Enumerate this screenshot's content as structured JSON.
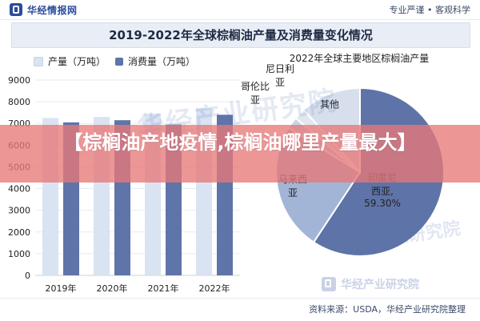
{
  "topbar": {
    "brand": "华经情报网",
    "slogan": "专业严谨 • 客观科学"
  },
  "title": "2019-2022年全球棕榈油产量及消费量变化情况",
  "banner": {
    "text": "【棕榈油产地疫情,棕榈油哪里产量最大】"
  },
  "watermarks": {
    "big": "华经产业研究院",
    "small": "华经产业研究院"
  },
  "footer": {
    "brand": "华经产业研究院",
    "source": "资料来源：USDA，华经产业研究院整理"
  },
  "chart_data": [
    {
      "type": "bar",
      "title": "",
      "xlabel": "",
      "ylabel": "",
      "categories": [
        "2019年",
        "2020年",
        "2021年",
        "2022年"
      ],
      "ylim": [
        0,
        9000
      ],
      "yticks": [
        0,
        1000,
        2000,
        3000,
        4000,
        5000,
        6000,
        7000,
        8000,
        9000
      ],
      "grid": true,
      "legend": "top-left",
      "series": [
        {
          "name": "产量（万吨）",
          "values": [
            7250,
            7300,
            7450,
            7700
          ],
          "color": "#d9e3f2"
        },
        {
          "name": "消费量（万吨）",
          "values": [
            7050,
            7150,
            6950,
            7400
          ],
          "color": "#5f74a8"
        }
      ]
    },
    {
      "type": "pie",
      "title": "2022年全球主要地区棕榈油产量",
      "slices": [
        {
          "label": "印度尼西亚",
          "value": 59.3,
          "display": "印度尼\n西亚,\n59.30%",
          "color": "#5e73a7"
        },
        {
          "label": "马来西亚",
          "value": 24.5,
          "display": "马来西\n亚",
          "color": "#a3b5d6"
        },
        {
          "label": "哥伦比亚",
          "value": 2.3,
          "display": "哥伦比\n亚",
          "color": "#c9d4e6"
        },
        {
          "label": "尼日利亚",
          "value": 2.2,
          "display": "尼日利\n亚",
          "color": "#e3e8f0"
        },
        {
          "label": "其他",
          "value": 11.7,
          "display": "其他",
          "color": "#d7dfec"
        }
      ]
    }
  ]
}
